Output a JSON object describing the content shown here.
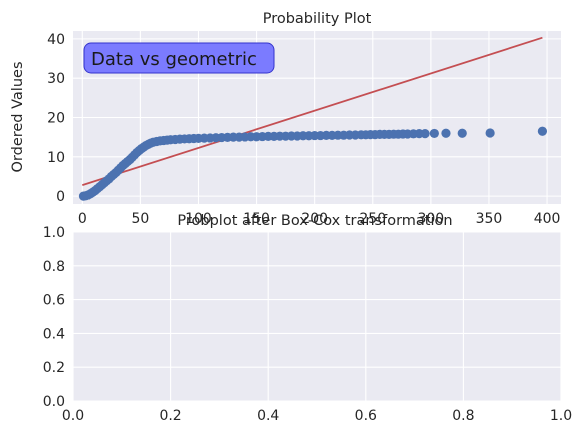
{
  "chart_data": [
    {
      "type": "scatter",
      "title": "Probability Plot",
      "xlabel": "",
      "ylabel": "Ordered Values",
      "xlim": [
        -8,
        412
      ],
      "ylim": [
        -2,
        42
      ],
      "xticks": [
        "0",
        "50",
        "100",
        "150",
        "200",
        "250",
        "300",
        "350",
        "400"
      ],
      "xtick_values": [
        0,
        50,
        100,
        150,
        200,
        250,
        300,
        350,
        400
      ],
      "yticks": [
        "0",
        "10",
        "20",
        "30",
        "40"
      ],
      "ytick_values": [
        0,
        10,
        20,
        30,
        40
      ],
      "annotation": "Data vs geometric",
      "series": [
        {
          "name": "ordered values",
          "kind": "points",
          "color": "#4c72b0",
          "x": [
            1,
            3,
            5,
            7,
            9,
            11,
            13,
            15,
            17,
            19,
            21,
            23,
            25,
            27,
            29,
            31,
            33,
            35,
            37,
            39,
            41,
            43,
            45,
            47,
            49,
            51,
            53,
            55,
            57,
            59,
            61,
            64,
            67,
            70,
            73,
            76,
            80,
            84,
            88,
            92,
            96,
            100,
            105,
            110,
            115,
            120,
            125,
            130,
            135,
            140,
            145,
            150,
            155,
            160,
            165,
            170,
            175,
            180,
            185,
            190,
            195,
            200,
            205,
            210,
            215,
            220,
            225,
            230,
            235,
            240,
            244,
            248,
            252,
            256,
            260,
            264,
            268,
            272,
            276,
            280,
            285,
            290,
            295,
            303,
            313,
            327,
            351,
            396
          ],
          "y": [
            0.0,
            0.1,
            0.3,
            0.6,
            1.0,
            1.4,
            1.9,
            2.4,
            2.9,
            3.4,
            3.9,
            4.4,
            5.0,
            5.5,
            6.0,
            6.6,
            7.2,
            7.8,
            8.3,
            8.8,
            9.3,
            9.9,
            10.5,
            11.1,
            11.6,
            12.1,
            12.5,
            12.9,
            13.2,
            13.5,
            13.7,
            13.9,
            14.05,
            14.15,
            14.25,
            14.35,
            14.4,
            14.5,
            14.55,
            14.6,
            14.65,
            14.7,
            14.75,
            14.8,
            14.85,
            14.9,
            14.95,
            15.0,
            15.0,
            15.05,
            15.1,
            15.1,
            15.15,
            15.2,
            15.2,
            15.25,
            15.25,
            15.3,
            15.3,
            15.35,
            15.35,
            15.4,
            15.4,
            15.45,
            15.45,
            15.5,
            15.5,
            15.55,
            15.55,
            15.6,
            15.6,
            15.65,
            15.65,
            15.7,
            15.7,
            15.7,
            15.75,
            15.75,
            15.8,
            15.8,
            15.85,
            15.9,
            15.9,
            15.95,
            16.0,
            16.0,
            16.05,
            16.5
          ]
        },
        {
          "name": "fit line",
          "kind": "line",
          "color": "#c44e52",
          "x": [
            0,
            396
          ],
          "y": [
            2.8,
            40.3
          ]
        }
      ]
    },
    {
      "type": "scatter",
      "title": "Probplot after Box-Cox transformation",
      "xlabel": "",
      "ylabel": "",
      "xlim": [
        0,
        1
      ],
      "ylim": [
        0,
        1
      ],
      "xticks": [
        "0.0",
        "0.2",
        "0.4",
        "0.6",
        "0.8",
        "1.0"
      ],
      "xtick_values": [
        0,
        0.2,
        0.4,
        0.6,
        0.8,
        1.0
      ],
      "yticks": [
        "0.0",
        "0.2",
        "0.4",
        "0.6",
        "0.8",
        "1.0"
      ],
      "ytick_values": [
        0,
        0.2,
        0.4,
        0.6,
        0.8,
        1.0
      ],
      "series": []
    }
  ],
  "colors": {
    "panel_bg": "#eaeaf2",
    "grid": "#ffffff",
    "annotation_fill": "#7b7bff",
    "annotation_edge": "#3333cc"
  }
}
